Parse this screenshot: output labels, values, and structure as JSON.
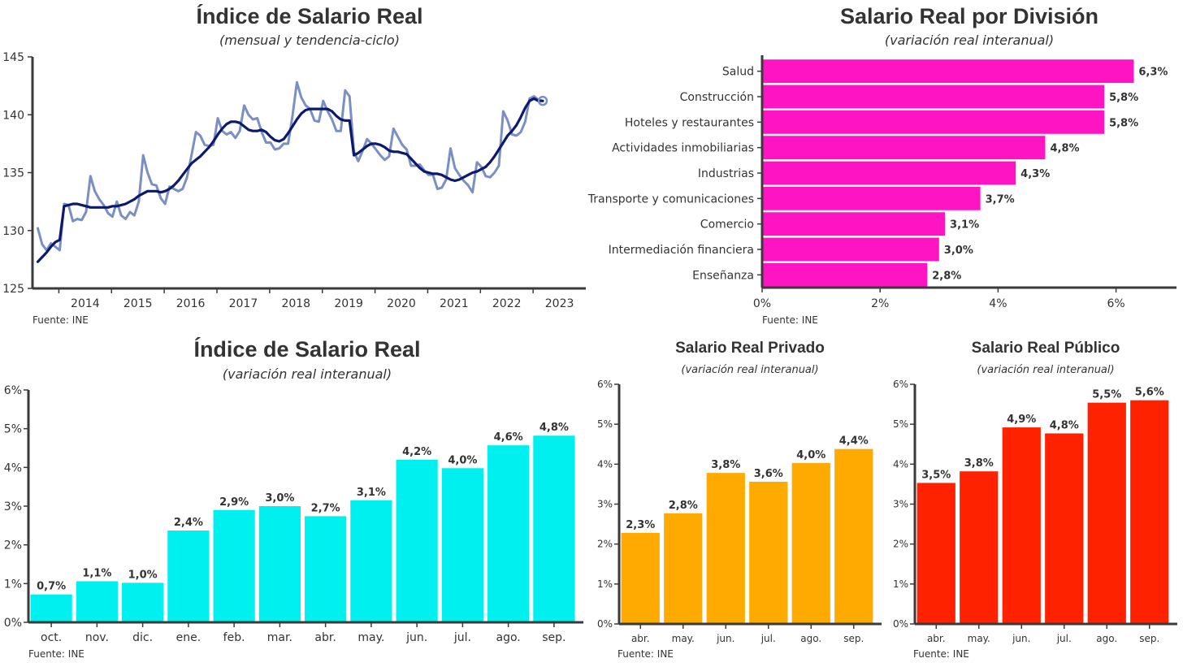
{
  "source": "Fuente: INE",
  "chart_data": [
    {
      "type": "line",
      "title": "Índice de Salario Real",
      "subtitle": "(mensual y tendencia-ciclo)",
      "ylim": [
        125,
        145
      ],
      "y_ticks": [
        125,
        130,
        135,
        140,
        145
      ],
      "x_ticks": [
        "2014",
        "2015",
        "2016",
        "2017",
        "2018",
        "2019",
        "2020",
        "2021",
        "2022",
        "2023"
      ],
      "x_start_year": 2013.55,
      "x_step": 0.0833333,
      "grid": false,
      "colors": {
        "monthly": "#7a8fc4",
        "trend": "#0b1a6e"
      },
      "series": [
        {
          "key": "monthly",
          "values": [
            130.2,
            128.8,
            128.3,
            128.9,
            128.6,
            128.3,
            132.3,
            132.2,
            130.8,
            131.0,
            130.9,
            131.6,
            134.7,
            133.4,
            132.7,
            132.2,
            131.5,
            131.2,
            132.5,
            131.3,
            131.0,
            131.6,
            131.3,
            132.5,
            136.5,
            135.0,
            134.0,
            133.9,
            132.8,
            132.3,
            133.8,
            133.6,
            133.4,
            133.6,
            134.6,
            136.5,
            138.5,
            138.2,
            137.4,
            137.3,
            137.4,
            139.7,
            138.6,
            138.3,
            138.5,
            138.0,
            138.6,
            140.8,
            140.0,
            139.6,
            139.7,
            138.5,
            137.6,
            137.6,
            137.0,
            137.1,
            137.5,
            137.5,
            139.9,
            142.8,
            141.5,
            140.8,
            140.5,
            139.5,
            139.4,
            141.2,
            140.3,
            139.6,
            138.6,
            138.6,
            142.1,
            141.6,
            136.8,
            136.0,
            136.9,
            137.9,
            137.5,
            137.0,
            136.5,
            136.1,
            136.4,
            138.8,
            138.1,
            137.4,
            137.0,
            135.6,
            135.6,
            135.7,
            135.2,
            134.8,
            134.8,
            133.6,
            133.7,
            134.4,
            137.1,
            135.4,
            134.8,
            134.3,
            133.9,
            133.3,
            135.9,
            135.5,
            134.7,
            134.6,
            135.0,
            135.6,
            140.3,
            139.5,
            138.3,
            138.2,
            138.5,
            139.4,
            141.4,
            141.6,
            141.3,
            141.2
          ]
        },
        {
          "key": "trend",
          "values": [
            127.3,
            127.7,
            128.1,
            128.6,
            129.0,
            129.2,
            132.1,
            132.2,
            132.3,
            132.3,
            132.2,
            132.1,
            132.0,
            132.0,
            132.0,
            132.0,
            132.0,
            132.1,
            132.1,
            132.2,
            132.3,
            132.5,
            132.7,
            133.0,
            133.2,
            133.4,
            133.4,
            133.4,
            133.3,
            133.4,
            133.6,
            133.9,
            134.3,
            134.8,
            135.3,
            135.8,
            136.1,
            136.4,
            136.8,
            137.2,
            137.7,
            138.3,
            138.8,
            139.2,
            139.4,
            139.4,
            139.3,
            139.0,
            138.7,
            138.6,
            138.6,
            138.7,
            138.5,
            138.1,
            137.8,
            137.7,
            137.9,
            138.4,
            139.0,
            139.6,
            140.1,
            140.4,
            140.5,
            140.5,
            140.5,
            140.5,
            140.5,
            140.3,
            139.9,
            139.6,
            139.5,
            139.5,
            136.5,
            136.7,
            137.0,
            137.3,
            137.5,
            137.5,
            137.4,
            137.2,
            136.9,
            136.8,
            136.8,
            136.7,
            136.6,
            136.2,
            135.8,
            135.4,
            135.1,
            135.0,
            134.9,
            134.9,
            134.8,
            134.6,
            134.4,
            134.3,
            134.4,
            134.6,
            134.8,
            135.0,
            135.1,
            135.3,
            135.5,
            135.9,
            136.4,
            137.0,
            137.6,
            138.2,
            138.6,
            139.1,
            139.8,
            140.6,
            141.2,
            141.4,
            141.2,
            141.2
          ]
        }
      ]
    },
    {
      "type": "bar",
      "orientation": "horizontal",
      "title": "Salario Real por División",
      "subtitle": "(variación real interanual)",
      "xlim": [
        0,
        7
      ],
      "x_ticks": [
        "0%",
        "2%",
        "4%",
        "6%"
      ],
      "color": "#ff14c4",
      "categories": [
        "Salud",
        "Construcción",
        "Hoteles y restaurantes",
        "Actividades inmobiliarias",
        "Industrias",
        "Transporte y comunicaciones",
        "Comercio",
        "Intermediación financiera",
        "Enseñanza"
      ],
      "values": [
        6.3,
        5.8,
        5.8,
        4.8,
        4.3,
        3.7,
        3.1,
        3.0,
        2.8
      ],
      "labels": [
        "6,3%",
        "5,8%",
        "5,8%",
        "4,8%",
        "4,3%",
        "3,7%",
        "3,1%",
        "3,0%",
        "2,8%"
      ]
    },
    {
      "type": "bar",
      "title": "Índice de Salario Real",
      "subtitle": "(variación real interanual)",
      "ylim": [
        0,
        6
      ],
      "y_ticks": [
        "0%",
        "1%",
        "2%",
        "3%",
        "4%",
        "5%",
        "6%"
      ],
      "color": "#00f0f0",
      "categories": [
        "oct.",
        "nov.",
        "dic.",
        "ene.",
        "feb.",
        "mar.",
        "abr.",
        "may.",
        "jun.",
        "jul.",
        "ago.",
        "sep."
      ],
      "values": [
        0.72,
        1.06,
        1.02,
        2.37,
        2.9,
        3.0,
        2.74,
        3.15,
        4.2,
        3.98,
        4.57,
        4.82
      ],
      "labels": [
        "0,7%",
        "1,1%",
        "1,0%",
        "2,4%",
        "2,9%",
        "3,0%",
        "2,7%",
        "3,1%",
        "4,2%",
        "4,0%",
        "4,6%",
        "4,8%"
      ]
    },
    {
      "type": "bar",
      "title": "Salario Real Privado",
      "subtitle": "(variación real interanual)",
      "ylim": [
        0,
        6
      ],
      "y_ticks": [
        "0%",
        "1%",
        "2%",
        "3%",
        "4%",
        "5%",
        "6%"
      ],
      "color": "#ffaa00",
      "categories": [
        "abr.",
        "may.",
        "jun.",
        "jul.",
        "ago.",
        "sep."
      ],
      "values": [
        2.28,
        2.77,
        3.78,
        3.56,
        4.03,
        4.38
      ],
      "labels": [
        "2,3%",
        "2,8%",
        "3,8%",
        "3,6%",
        "4,0%",
        "4,4%"
      ]
    },
    {
      "type": "bar",
      "title": "Salario Real Público",
      "subtitle": "(variación real interanual)",
      "ylim": [
        0,
        6
      ],
      "y_ticks": [
        "0%",
        "1%",
        "2%",
        "3%",
        "4%",
        "5%",
        "6%"
      ],
      "color": "#ff2200",
      "categories": [
        "abr.",
        "may.",
        "jun.",
        "jul.",
        "ago.",
        "sep."
      ],
      "values": [
        3.53,
        3.82,
        4.92,
        4.77,
        5.54,
        5.6
      ],
      "labels": [
        "3,5%",
        "3,8%",
        "4,9%",
        "4,8%",
        "5,5%",
        "5,6%"
      ]
    }
  ]
}
